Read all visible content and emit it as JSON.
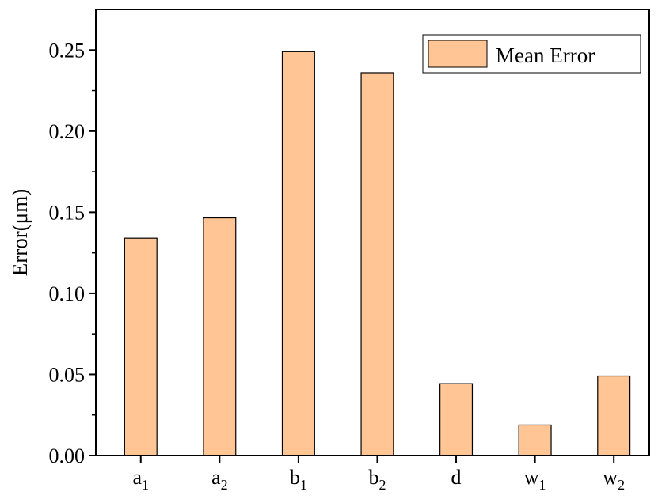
{
  "chart_data": {
    "type": "bar",
    "categories": [
      {
        "base": "a",
        "sub": "1"
      },
      {
        "base": "a",
        "sub": "2"
      },
      {
        "base": "b",
        "sub": "1"
      },
      {
        "base": "b",
        "sub": "2"
      },
      {
        "base": "d",
        "sub": ""
      },
      {
        "base": "w",
        "sub": "1"
      },
      {
        "base": "w",
        "sub": "2"
      }
    ],
    "series": [
      {
        "name": "Mean Error",
        "values": [
          0.134,
          0.1465,
          0.249,
          0.236,
          0.0443,
          0.0188,
          0.049
        ]
      }
    ],
    "ylabel": "Error(μm)",
    "xlabel": "",
    "ylim": [
      0,
      0.275
    ],
    "yticks": [
      "0.00",
      "0.05",
      "0.10",
      "0.15",
      "0.20",
      "0.25"
    ],
    "grid": false,
    "legend": "top-right",
    "colors": {
      "bar_fill": "#ffc594",
      "bar_stroke": "#000000"
    }
  }
}
